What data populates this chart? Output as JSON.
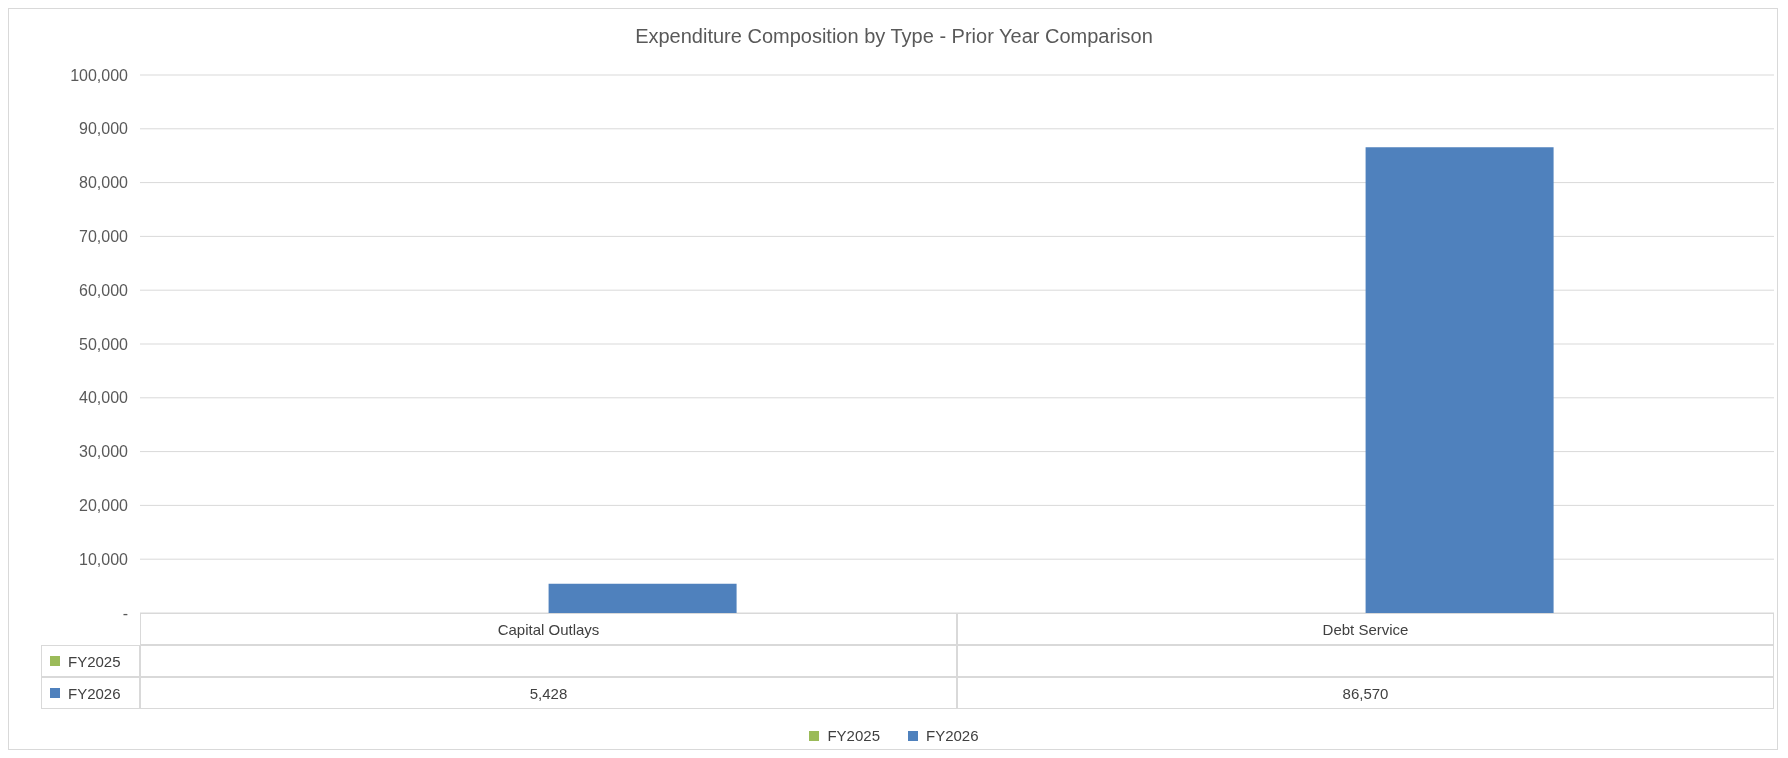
{
  "chart_data": {
    "type": "bar",
    "title": "Expenditure Composition by Type - Prior Year Comparison",
    "categories": [
      "Capital Outlays",
      "Debt Service"
    ],
    "series": [
      {
        "name": "FY2025",
        "color": "#9bbb59",
        "values": [
          null,
          null
        ],
        "value_labels": [
          null,
          null
        ]
      },
      {
        "name": "FY2026",
        "color": "#4f81bd",
        "values": [
          5428,
          86570
        ],
        "value_labels": [
          "5,428",
          "86,570"
        ]
      }
    ],
    "ylim": [
      0,
      100000
    ],
    "yticks": [
      {
        "value": 0,
        "label": "-"
      },
      {
        "value": 10000,
        "label": "10,000"
      },
      {
        "value": 20000,
        "label": "20,000"
      },
      {
        "value": 30000,
        "label": "30,000"
      },
      {
        "value": 40000,
        "label": "40,000"
      },
      {
        "value": 50000,
        "label": "50,000"
      },
      {
        "value": 60000,
        "label": "60,000"
      },
      {
        "value": 70000,
        "label": "70,000"
      },
      {
        "value": 80000,
        "label": "80,000"
      },
      {
        "value": 90000,
        "label": "90,000"
      },
      {
        "value": 100000,
        "label": "100,000"
      }
    ],
    "grid": "y",
    "legend": "bottom"
  }
}
